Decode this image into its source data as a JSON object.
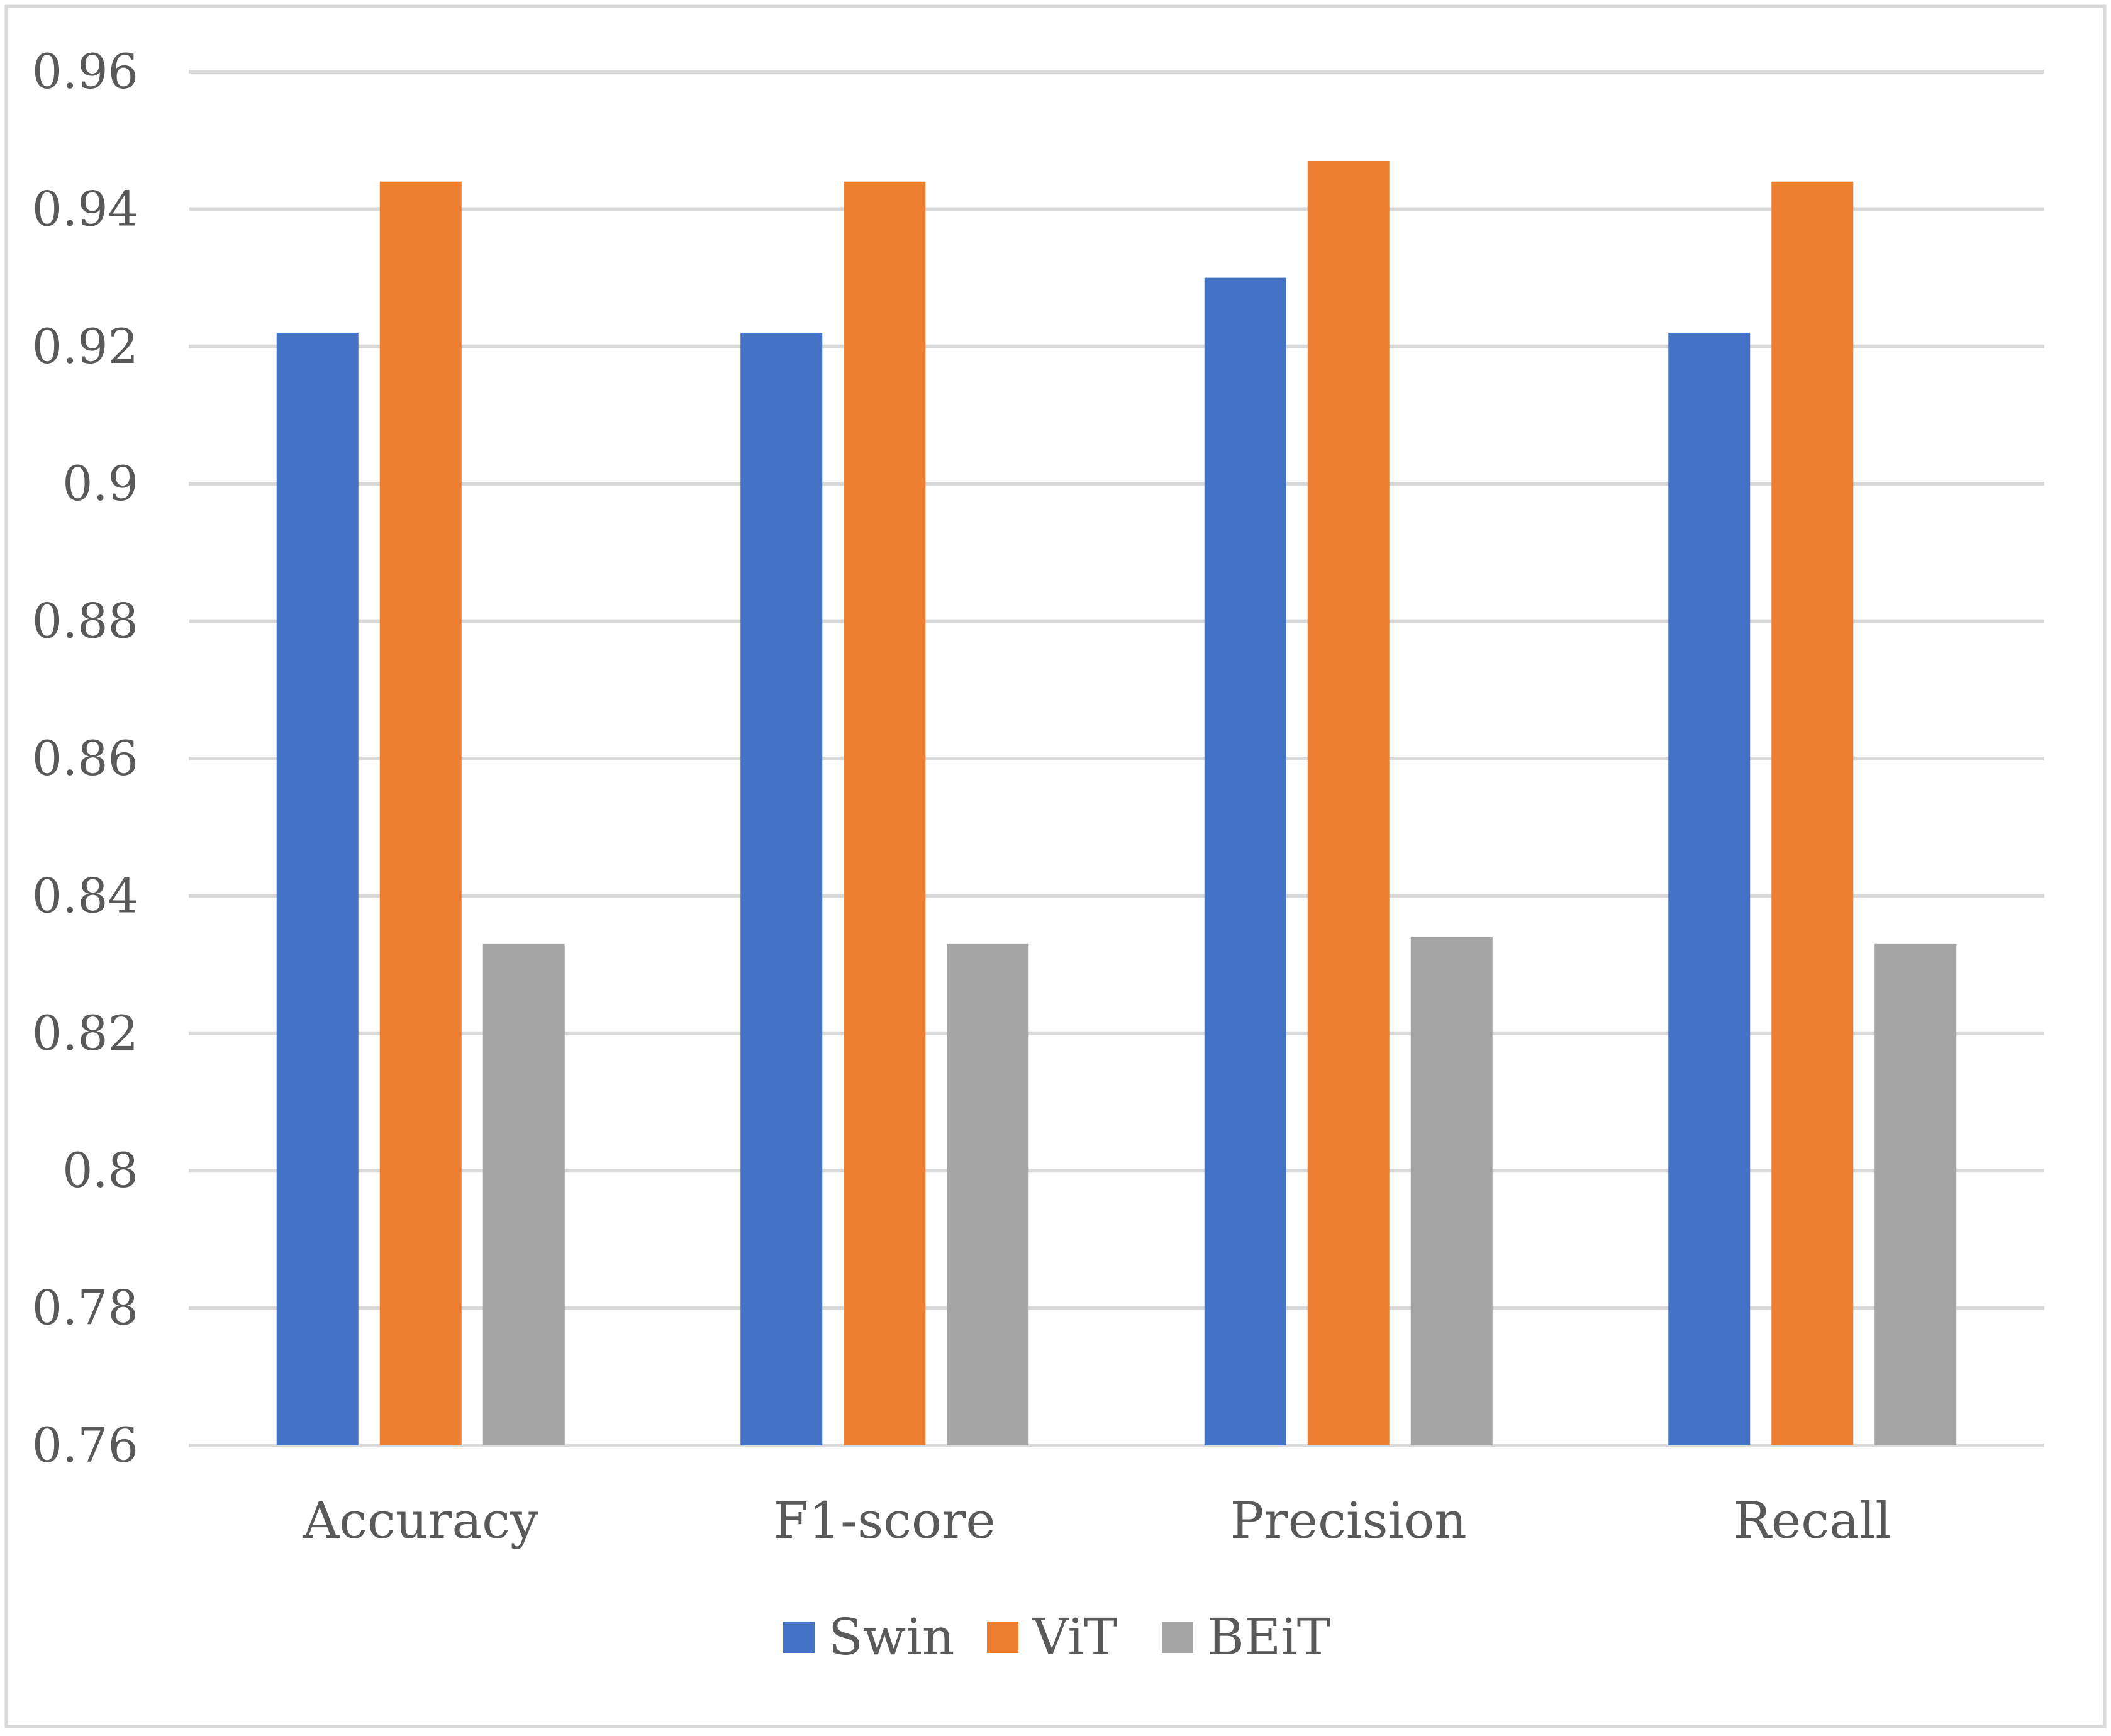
{
  "chart_data": {
    "type": "bar",
    "title": "",
    "xlabel": "",
    "ylabel": "",
    "categories": [
      "Accuracy",
      "F1-score",
      "Precision",
      "Recall"
    ],
    "series": [
      {
        "name": "Swin",
        "color": "#4472C4",
        "values": [
          0.922,
          0.922,
          0.93,
          0.922
        ]
      },
      {
        "name": "ViT",
        "color": "#ED7D31",
        "values": [
          0.944,
          0.944,
          0.947,
          0.944
        ]
      },
      {
        "name": "BEiT",
        "color": "#A5A5A5",
        "values": [
          0.833,
          0.833,
          0.834,
          0.833
        ]
      }
    ],
    "ylim": [
      0.76,
      0.96
    ],
    "yticks": [
      "0.76",
      "0.78",
      "0.8",
      "0.82",
      "0.84",
      "0.86",
      "0.88",
      "0.9",
      "0.92",
      "0.94",
      "0.96"
    ],
    "grid": true,
    "legend": "bottom-center"
  }
}
